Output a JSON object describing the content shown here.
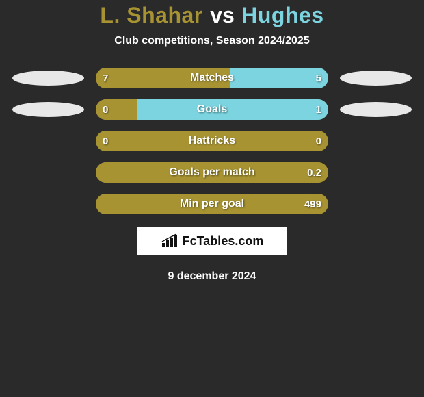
{
  "background_color": "#2a2a2a",
  "title": {
    "player1": "L. Shahar",
    "vs": "vs",
    "player2": "Hughes",
    "player1_color": "#a79332",
    "player2_color": "#7bd4e0"
  },
  "subtitle": "Club competitions, Season 2024/2025",
  "bar_track_color": "#a79332",
  "bar_left_color": "#a79332",
  "bar_right_color": "#7bd4e0",
  "badge_left_color": "#e8e8e8",
  "badge_right_color": "#e8e8e8",
  "stats": [
    {
      "label": "Matches",
      "left_value": "7",
      "right_value": "5",
      "left_pct": 58,
      "right_pct": 42,
      "show_badges": true
    },
    {
      "label": "Goals",
      "left_value": "0",
      "right_value": "1",
      "left_pct": 18,
      "right_pct": 82,
      "show_badges": true
    },
    {
      "label": "Hattricks",
      "left_value": "0",
      "right_value": "0",
      "left_pct": 100,
      "right_pct": 0,
      "show_badges": false
    },
    {
      "label": "Goals per match",
      "left_value": "",
      "right_value": "0.2",
      "left_pct": 100,
      "right_pct": 0,
      "show_badges": false
    },
    {
      "label": "Min per goal",
      "left_value": "",
      "right_value": "499",
      "left_pct": 100,
      "right_pct": 0,
      "show_badges": false
    }
  ],
  "footer": {
    "brand": "FcTables.com",
    "date": "9 december 2024"
  }
}
